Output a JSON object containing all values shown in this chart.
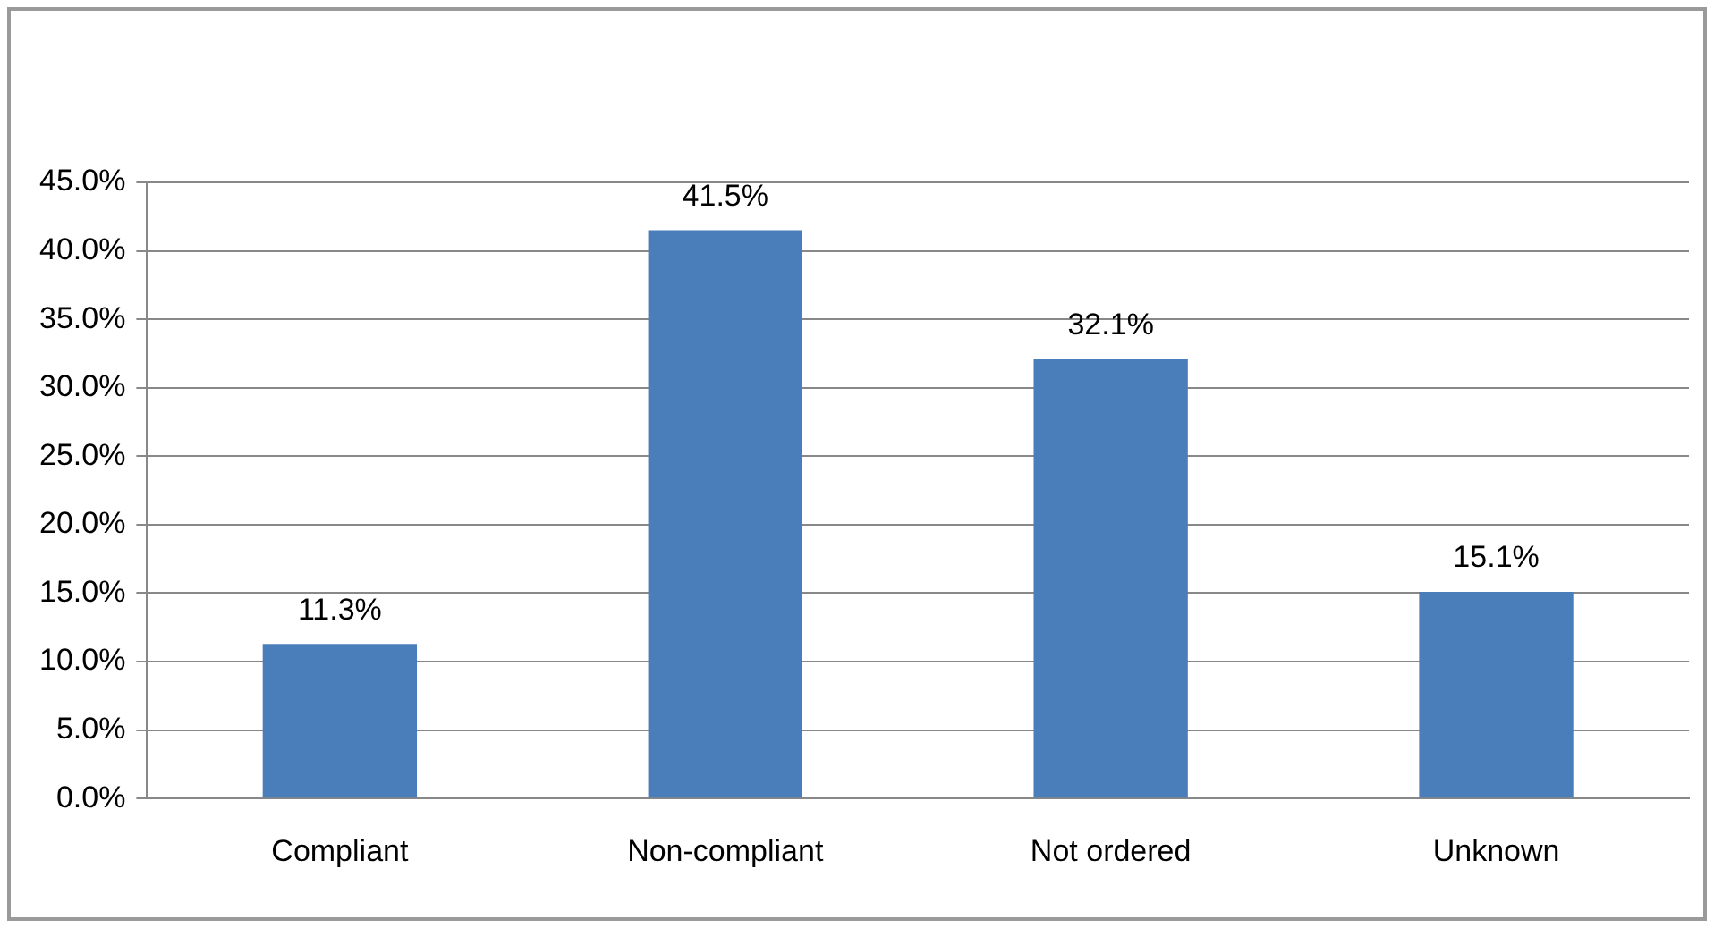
{
  "chart_data": {
    "type": "bar",
    "categories": [
      "Compliant",
      "Non-compliant",
      "Not ordered",
      "Unknown"
    ],
    "values": [
      11.3,
      41.5,
      32.1,
      15.1
    ],
    "value_labels": [
      "11.3%",
      "41.5%",
      "32.1%",
      "15.1%"
    ],
    "color": "#4a7ebb",
    "ylim": [
      0,
      45
    ],
    "yticks": [
      {
        "value": 0,
        "label": "0.0%"
      },
      {
        "value": 5,
        "label": "5.0%"
      },
      {
        "value": 10,
        "label": "10.0%"
      },
      {
        "value": 15,
        "label": "15.0%"
      },
      {
        "value": 20,
        "label": "20.0%"
      },
      {
        "value": 25,
        "label": "25.0%"
      },
      {
        "value": 30,
        "label": "30.0%"
      },
      {
        "value": 35,
        "label": "35.0%"
      },
      {
        "value": 40,
        "label": "40.0%"
      },
      {
        "value": 45,
        "label": "45.0%"
      }
    ],
    "grid": "y",
    "legend": false
  }
}
